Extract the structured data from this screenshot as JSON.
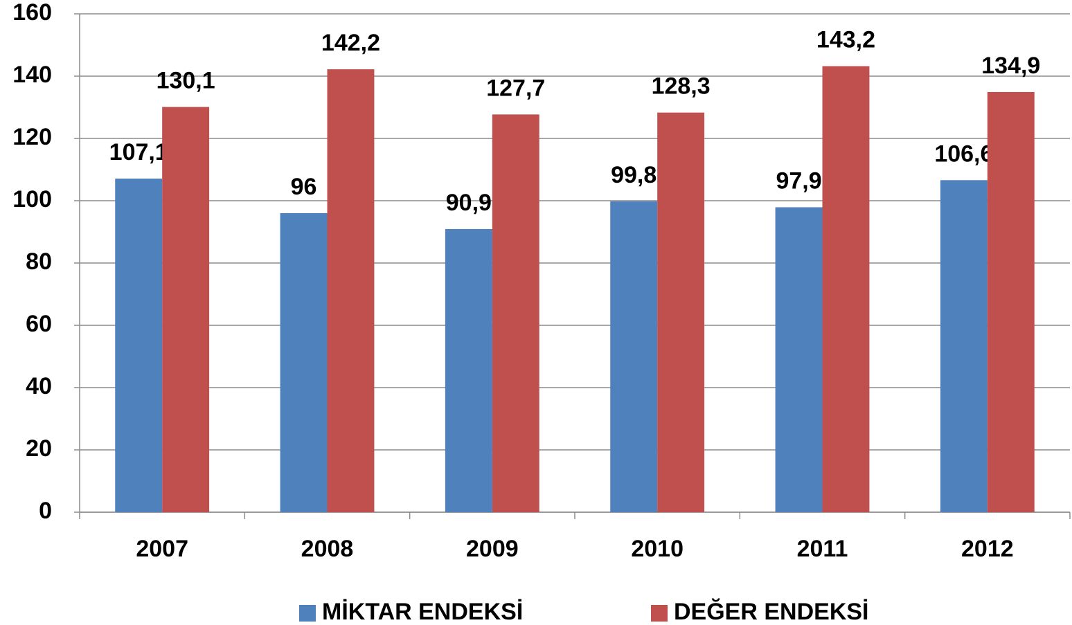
{
  "chart_data": {
    "type": "bar",
    "categories": [
      "2007",
      "2008",
      "2009",
      "2010",
      "2011",
      "2012"
    ],
    "series": [
      {
        "name": "MİKTAR ENDEKSİ",
        "color": "#4f81bd",
        "values": [
          107.1,
          96,
          90.9,
          99.8,
          97.9,
          106.6
        ],
        "value_labels": [
          "107,1",
          "96",
          "90,9",
          "99,8",
          "97,9",
          "106,6"
        ]
      },
      {
        "name": "DEĞER ENDEKSİ",
        "color": "#c0504d",
        "values": [
          130.1,
          142.2,
          127.7,
          128.3,
          143.2,
          134.9
        ],
        "value_labels": [
          "130,1",
          "142,2",
          "127,7",
          "128,3",
          "143,2",
          "134,9"
        ]
      }
    ],
    "ylim": [
      0,
      160
    ],
    "yticks": [
      0,
      20,
      40,
      60,
      80,
      100,
      120,
      140,
      160
    ],
    "grid": true,
    "legend": "bottom"
  }
}
